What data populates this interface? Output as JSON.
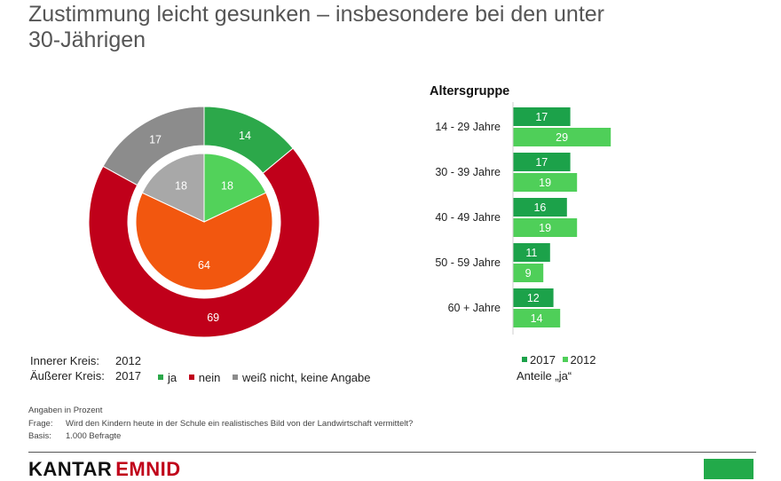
{
  "title": {
    "line1": "Zustimmung leicht gesunken – insbesondere bei den unter",
    "line2": "30-Jährigen"
  },
  "colors": {
    "ja": "#2ca84a",
    "ja_light": "#52d25a",
    "nein": "#c0001a",
    "inner_nein": "#f2570f",
    "unsure": "#8c8c8c",
    "unsure_light": "#a8a8a8",
    "bar2017": "#1ca24a",
    "bar2012": "#4fcf59",
    "brand_green": "#22aa4a"
  },
  "chart_data": [
    {
      "type": "pie",
      "variant": "double-donut",
      "rings": [
        {
          "name": "Innerer Kreis",
          "year": "2012",
          "values": [
            18,
            64,
            18
          ]
        },
        {
          "name": "Äußerer Kreis",
          "year": "2017",
          "values": [
            14,
            69,
            17
          ]
        }
      ],
      "categories": [
        "ja",
        "nein",
        "weiß nicht, keine Angabe"
      ],
      "legend": {
        "inner_label": "Innerer Kreis:",
        "inner_year": "2012",
        "outer_label": "Äußerer Kreis:",
        "outer_year": "2017"
      }
    },
    {
      "type": "bar",
      "orientation": "horizontal",
      "title": "Altersgruppe",
      "categories": [
        "14 - 29 Jahre",
        "30 - 39 Jahre",
        "40 - 49 Jahre",
        "50 - 59 Jahre",
        "60 + Jahre"
      ],
      "series": [
        {
          "name": "2017",
          "values": [
            17,
            17,
            16,
            11,
            12
          ]
        },
        {
          "name": "2012",
          "values": [
            29,
            19,
            19,
            9,
            14
          ]
        }
      ],
      "note": "Anteile „ja“"
    }
  ],
  "footer": {
    "line1": "Angaben in Prozent",
    "frage_label": "Frage:",
    "frage_text": "Wird den Kindern heute in der Schule ein realistisches Bild von der Landwirtschaft vermittelt?",
    "basis_label": "Basis:",
    "basis_text": "1.000 Befragte"
  },
  "logo": {
    "part1": "KANTAR",
    "part2": "EMNID"
  }
}
